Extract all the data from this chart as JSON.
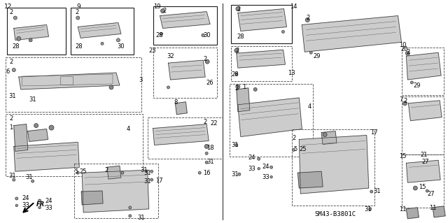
{
  "bg_color": "#ffffff",
  "fig_width": 6.4,
  "fig_height": 3.19,
  "dpi": 100,
  "diagram_code": "SM43-B3801C"
}
